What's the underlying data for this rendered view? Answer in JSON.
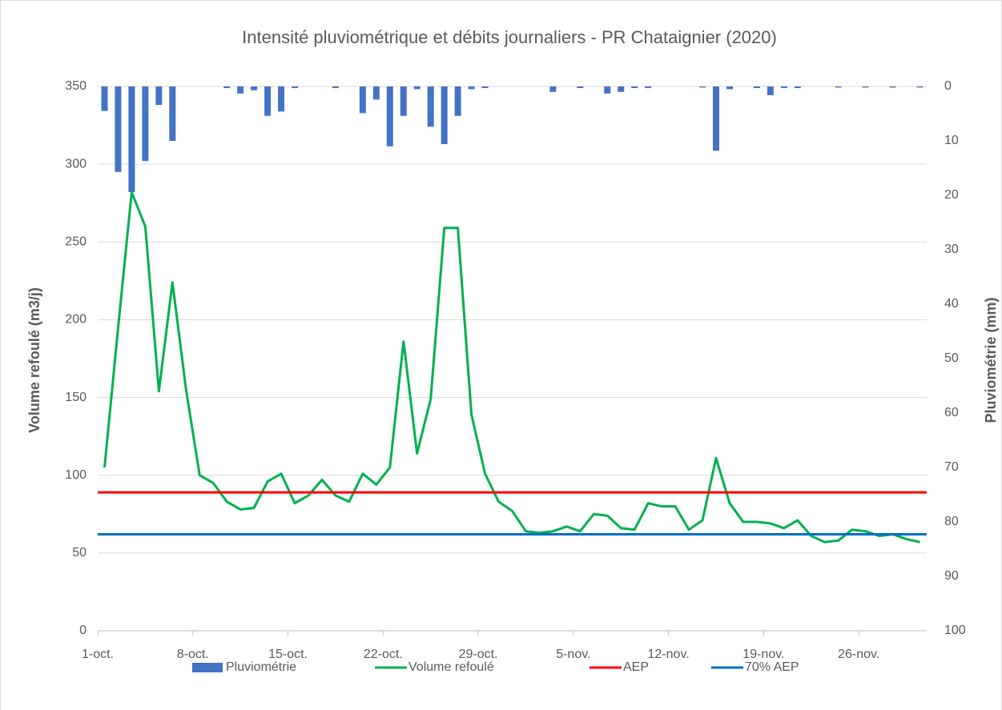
{
  "chart_data": {
    "type": "bar_line",
    "title": "Intensité pluviométrique et débits journaliers - PR Chataignier (2020)",
    "y_label": "Volume refoulé (m3/j)",
    "y2_label": "Pluviométrie (mm)",
    "categories": [
      "1-oct.",
      null,
      null,
      null,
      null,
      null,
      null,
      "8-oct.",
      null,
      null,
      null,
      null,
      null,
      null,
      "15-oct.",
      null,
      null,
      null,
      null,
      null,
      null,
      "22-oct.",
      null,
      null,
      null,
      null,
      null,
      null,
      "29-oct.",
      null,
      null,
      null,
      null,
      null,
      null,
      "5-nov.",
      null,
      null,
      null,
      null,
      null,
      null,
      "12-nov.",
      null,
      null,
      null,
      null,
      null,
      null,
      "19-nov.",
      null,
      null,
      null,
      null,
      null,
      null,
      "26-nov.",
      null,
      null,
      null,
      null
    ],
    "series": [
      {
        "name": "Pluviométrie",
        "type": "bar",
        "axis": "y2",
        "color": "#4472c4",
        "values": [
          4.5,
          15.7,
          19.4,
          13.7,
          3.4,
          10,
          0,
          0,
          0,
          0.3,
          1.3,
          0.7,
          5.4,
          4.6,
          0.3,
          0,
          0,
          0.3,
          0,
          4.9,
          2.4,
          11,
          5.4,
          0.5,
          7.4,
          10.6,
          5.4,
          0.5,
          0.3,
          0,
          0,
          0,
          0,
          1,
          0,
          0.3,
          0,
          1.3,
          1,
          0.3,
          0.3,
          0,
          0,
          0,
          0.2,
          11.8,
          0.5,
          0,
          0.3,
          1.6,
          0.3,
          0.3,
          0,
          0,
          0.2,
          0,
          0.2,
          0,
          0.2,
          0,
          0.2
        ]
      },
      {
        "name": "Volume refoulé",
        "type": "line",
        "color": "#00b050",
        "values": [
          105,
          195,
          282,
          260,
          154,
          224,
          155,
          100,
          95,
          83,
          78,
          79,
          96,
          101,
          82,
          87,
          97,
          87,
          83,
          101,
          94,
          105,
          186,
          114,
          149,
          259,
          259,
          139,
          101,
          83,
          77,
          64,
          63,
          64,
          67,
          64,
          75,
          74,
          66,
          65,
          82,
          80,
          80,
          65,
          71,
          111,
          82,
          70,
          70,
          69,
          66,
          71,
          61,
          57,
          58,
          65,
          64,
          61,
          62,
          59,
          57
        ]
      }
    ],
    "reference_lines": [
      {
        "name": "AEP",
        "color": "#ff0000",
        "value": 89
      },
      {
        "name": "70% AEP",
        "color": "#0070c0",
        "value": 62
      }
    ],
    "ylim": [
      0,
      350
    ],
    "yticks": [
      0,
      50,
      100,
      150,
      200,
      250,
      300,
      350
    ],
    "y2lim": [
      0,
      100
    ],
    "y2ticks": [
      0,
      10,
      20,
      30,
      40,
      50,
      60,
      70,
      80,
      90,
      100
    ],
    "y2_reversed": true,
    "grid": true,
    "legend": "bottom"
  }
}
